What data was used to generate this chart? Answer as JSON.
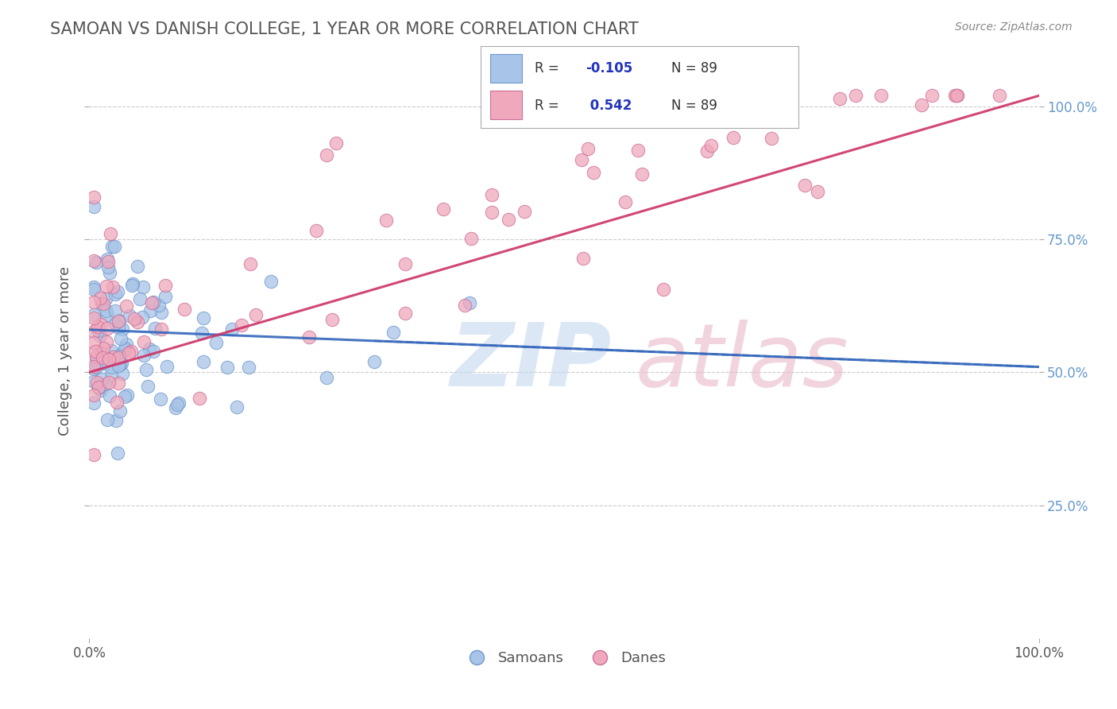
{
  "title": "SAMOAN VS DANISH COLLEGE, 1 YEAR OR MORE CORRELATION CHART",
  "source_text": "Source: ZipAtlas.com",
  "ylabel": "College, 1 year or more",
  "samoans_R": -0.105,
  "samoans_N": 89,
  "danes_R": 0.542,
  "danes_N": 89,
  "samoan_fill": "#a8c4e8",
  "samoan_edge": "#7099cc",
  "dane_fill": "#f0a8bc",
  "dane_edge": "#cc7099",
  "trend_samoan_color": "#3366bb",
  "trend_dane_color": "#cc3366",
  "grid_color": "#cccccc",
  "background_color": "#ffffff",
  "title_color": "#555555",
  "source_color": "#888888",
  "right_tick_color": "#6699cc",
  "legend_R_color": "#2233bb",
  "watermark_zip_color": "#c5d8f0",
  "watermark_atlas_color": "#e8b8c8"
}
